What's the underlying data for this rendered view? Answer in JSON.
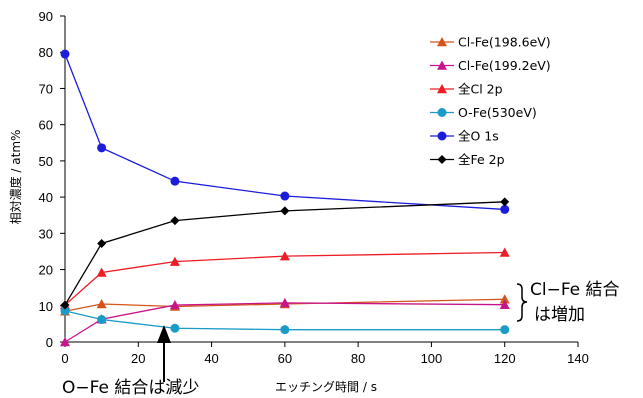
{
  "chart_data": {
    "type": "line",
    "xlabel": "エッチング時間 / s",
    "ylabel": "相対濃度 / atm%",
    "xlim": [
      0,
      140
    ],
    "ylim": [
      0,
      90
    ],
    "xticks": [
      "0",
      "20",
      "40",
      "60",
      "80",
      "100",
      "120",
      "140"
    ],
    "yticks": [
      "0",
      "10",
      "20",
      "30",
      "40",
      "50",
      "60",
      "70",
      "80",
      "90"
    ],
    "x": [
      0,
      10,
      30,
      60,
      120
    ],
    "legend_position": "top-right",
    "grid": false,
    "series": [
      {
        "name": "Cl-Fe(198.6eV)",
        "color": "#d3541a",
        "marker": "triangle",
        "values": [
          8.5,
          10.5,
          9.8,
          10.5,
          11.8
        ]
      },
      {
        "name": "Cl-Fe(199.2eV)",
        "color": "#c8148c",
        "marker": "triangle",
        "values": [
          0,
          6.3,
          10.2,
          10.8,
          10.3
        ]
      },
      {
        "name": "全Cl 2p",
        "color": "#ee1c24",
        "marker": "triangle",
        "values": [
          10.2,
          19.2,
          22.2,
          23.7,
          24.7
        ]
      },
      {
        "name": "O-Fe(530eV)",
        "color": "#1a9bc8",
        "marker": "circle",
        "values": [
          8.6,
          6.2,
          3.8,
          3.4,
          3.4
        ]
      },
      {
        "name": "全O 1s",
        "color": "#1c1cdc",
        "marker": "circle",
        "values": [
          79.5,
          53.6,
          44.4,
          40.3,
          36.6
        ]
      },
      {
        "name": "全Fe 2p",
        "color": "#000000",
        "marker": "diamond",
        "values": [
          10.2,
          27.2,
          33.5,
          36.2,
          38.7
        ]
      }
    ],
    "annotations": [
      {
        "text_line1": "Cl−Fe 結合",
        "text_line2": "は増加"
      },
      {
        "text": "O−Fe 結合は減少"
      }
    ]
  }
}
